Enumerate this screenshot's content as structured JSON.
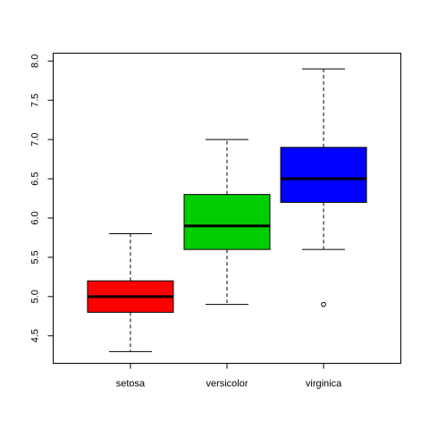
{
  "chart_data": {
    "type": "boxplot",
    "title": "",
    "xlabel": "",
    "ylabel": "",
    "ylim": [
      4.15,
      8.1
    ],
    "yticks": [
      4.5,
      5.0,
      5.5,
      6.0,
      6.5,
      7.0,
      7.5,
      8.0
    ],
    "ytick_labels": [
      "4.5",
      "5.0",
      "5.5",
      "6.0",
      "6.5",
      "7.0",
      "7.5",
      "8.0"
    ],
    "grid": false,
    "categories": [
      "setosa",
      "versicolor",
      "virginica"
    ],
    "boxes": [
      {
        "category": "setosa",
        "min": 4.3,
        "q1": 4.8,
        "median": 5.0,
        "q3": 5.2,
        "max": 5.8,
        "outliers": [],
        "color": "#ff0000"
      },
      {
        "category": "versicolor",
        "min": 4.9,
        "q1": 5.6,
        "median": 5.9,
        "q3": 6.3,
        "max": 7.0,
        "outliers": [],
        "color": "#00cd00"
      },
      {
        "category": "virginica",
        "min": 5.6,
        "q1": 6.2,
        "median": 6.5,
        "q3": 6.9,
        "max": 7.9,
        "outliers": [
          4.9
        ],
        "color": "#0000ff"
      }
    ]
  }
}
